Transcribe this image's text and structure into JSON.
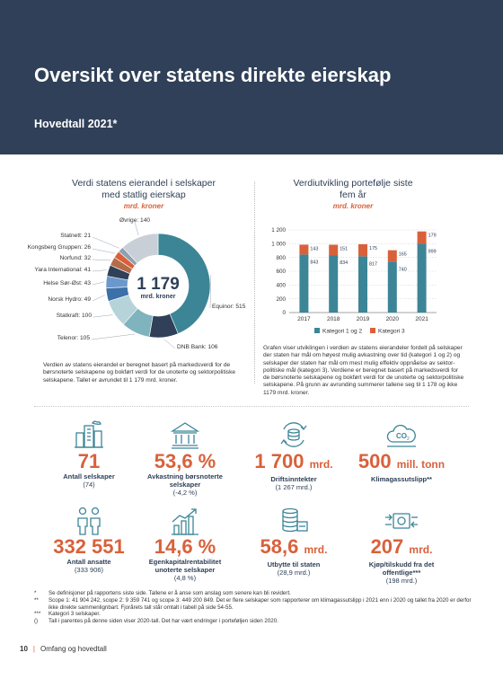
{
  "header": {
    "title": "Oversikt over statens direkte eierskap",
    "subtitle": "Hovedtall 2021*"
  },
  "colors": {
    "navy": "#2f4058",
    "teal": "#3c8597",
    "orange": "#d9613a"
  },
  "left": {
    "title": "Verdi statens eierandel i selskaper med statlig eierskap",
    "unit": "mrd. kroner",
    "center_value": "1 179",
    "center_unit": "mrd. kroner",
    "description": "Verdien av statens eierandel er beregnet basert på markedsverdi for de børsnoterte selskapene og bokført verdi for de unoterte og sektorpolitiske selskapene. Tallet er avrundet til 1 179 mrd. kroner."
  },
  "right": {
    "title": "Verdiutvikling portefølje siste fem år",
    "unit": "mrd. kroner",
    "description": "Grafen viser utviklingen i verdien av statens eierandeler fordelt på selskaper der staten har mål om høyest mulig avkastning over tid (kategori 1 og 2) og selskaper der staten har mål om mest mulig effektiv oppnåelse av sektor-politiske mål (kategori 3). Verdiene er beregnet basert på markedsverdi for de børsnoterte selskapene og bokført verdi for de unoterte og sektorpolitiske selskapene. På grunn av avrunding summerer tallene seg til 1 178 og ikke 1179 mrd. kroner."
  },
  "chart_data": [
    {
      "type": "pie",
      "title": "Verdi statens eierandel i selskaper med statlig eierskap",
      "categories": [
        "Equinor",
        "DNB Bank",
        "Telenor",
        "Statkraft",
        "Norsk Hydro",
        "Helse Sør-Øst",
        "Yara International",
        "Norfund",
        "Kongsberg Gruppen",
        "Statnett",
        "Øvrige"
      ],
      "values": [
        515,
        106,
        105,
        100,
        49,
        43,
        41,
        32,
        26,
        21,
        140
      ],
      "labels": [
        "Equinor: 515",
        "DNB Bank: 106",
        "Telenor: 105",
        "Statkraft: 100",
        "Norsk Hydro: 49",
        "Helse Sør-Øst: 43",
        "Yara International: 41",
        "Norfund: 32",
        "Kongsberg Gruppen: 26",
        "Statnett: 21",
        "Øvrige: 140"
      ],
      "colors": [
        "#3c8597",
        "#2f4058",
        "#7fb3bd",
        "#b5d3d8",
        "#3c70a8",
        "#6b98cc",
        "#2f4058",
        "#b56a48",
        "#d9613a",
        "#8fa0b3",
        "#c9cfd6"
      ]
    },
    {
      "type": "bar",
      "title": "Verdiutvikling portefølje siste fem år",
      "categories": [
        "2017",
        "2018",
        "2019",
        "2020",
        "2021"
      ],
      "series": [
        {
          "name": "Kategori 1 og 2",
          "values": [
            843,
            834,
            817,
            740,
            999
          ],
          "color": "#3c8597"
        },
        {
          "name": "Kategori 3",
          "values": [
            143,
            151,
            175,
            165,
            179
          ],
          "color": "#d9613a"
        }
      ],
      "ylim": [
        0,
        1200
      ],
      "yticks": [
        "0",
        "200",
        "400",
        "600",
        "800",
        "1 000",
        "1 200"
      ],
      "grid": true,
      "legend": "bottom"
    }
  ],
  "kpis": [
    {
      "icon": "buildings-icon",
      "value": "71",
      "unit": "",
      "label": "Antall selskaper",
      "sub": "(74)"
    },
    {
      "icon": "bank-icon",
      "value": "53,6 %",
      "unit": "",
      "label": "Avkastning børsnoterte selskaper",
      "sub": "(-4,2 %)"
    },
    {
      "icon": "money-cycle-icon",
      "value": "1 700",
      "unit": "mrd.",
      "label": "Driftsinntekter",
      "sub": "(1 267 mrd.)"
    },
    {
      "icon": "co2-cloud-icon",
      "value": "500",
      "unit": "mill. tonn",
      "label": "Klimagassutslipp**",
      "sub": ""
    },
    {
      "icon": "people-icon",
      "value": "332 551",
      "unit": "",
      "label": "Antall ansatte",
      "sub": "(333 906)"
    },
    {
      "icon": "growth-chart-icon",
      "value": "14,6 %",
      "unit": "",
      "label": "Egenkapitalrentabilitet unoterte selskaper",
      "sub": "(4,8 %)"
    },
    {
      "icon": "coin-stack-icon",
      "value": "58,6",
      "unit": "mrd.",
      "label": "Utbytte til staten",
      "sub": "(28,9 mrd.)"
    },
    {
      "icon": "exchange-icon",
      "value": "207",
      "unit": "mrd.",
      "label": "Kjøp/tilskudd fra det offentlige***",
      "sub": "(198 mrd.)"
    }
  ],
  "notes": [
    {
      "mark": "*",
      "text": "Se definisjoner på rapportens siste side. Tallene er å anse som anslag som senere kan bli revidert."
    },
    {
      "mark": "**",
      "text": "Scope 1: 41 904 242, scope 2: 9 359 741 og scope 3: 449 200 849. Det er flere selskaper som rapporterer om klimagassutslipp i 2021 enn i 2020 og tallet fra 2020 er derfor ikke direkte sammenlignbart. Fjorårets tall står omtalt i tabell på side 54-55."
    },
    {
      "mark": "***",
      "text": "Kategori 3 selskaper."
    },
    {
      "mark": "()",
      "text": "Tall i parentes på denne siden viser 2020-tall. Det har vært endringer i porteføljen siden 2020."
    }
  ],
  "footer": {
    "page": "10",
    "section": "Omfang og hovedtall"
  }
}
